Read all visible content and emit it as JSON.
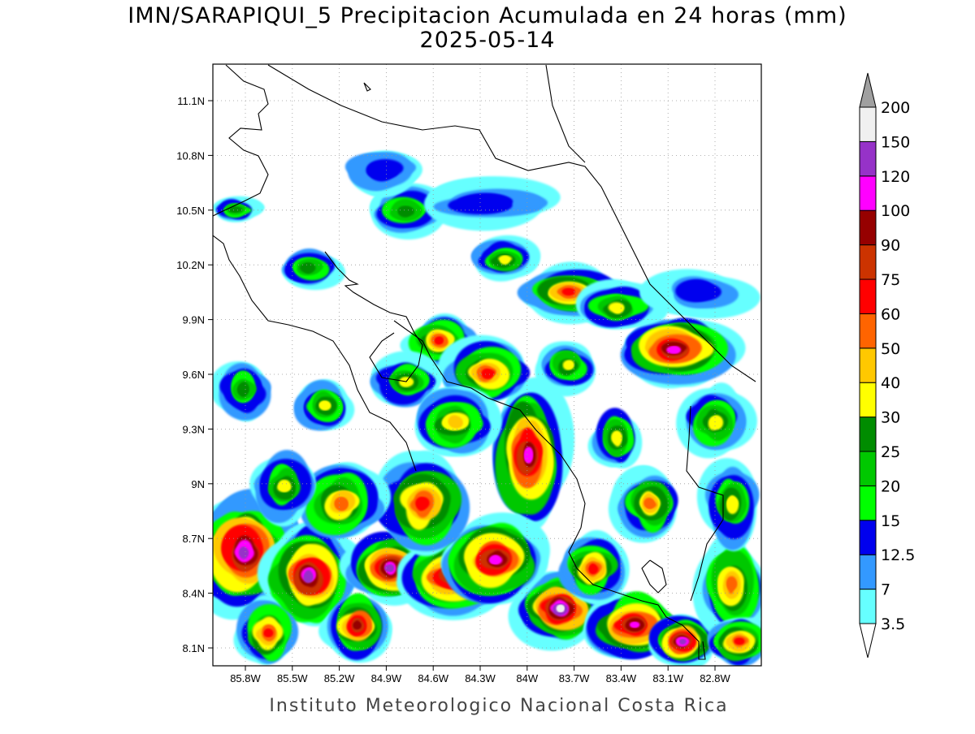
{
  "header": {
    "title": "IMN/SARAPIQUI_5 Precipitacion Acumulada en 24 horas (mm)",
    "date": "2025-05-14"
  },
  "map": {
    "lon_ticks": [
      "85.8W",
      "85.5W",
      "85.2W",
      "84.9W",
      "84.6W",
      "84.3W",
      "84W",
      "83.7W",
      "83.4W",
      "83.1W",
      "82.8W"
    ],
    "lat_ticks": [
      "11.1N",
      "10.8N",
      "10.5N",
      "10.2N",
      "9.9N",
      "9.6N",
      "9.3N",
      "9N",
      "8.7N",
      "8.4N",
      "8.1N"
    ]
  },
  "colorbar": {
    "levels": [
      3.5,
      7,
      12.5,
      15,
      20,
      25,
      30,
      40,
      50,
      60,
      75,
      90,
      100,
      120,
      150,
      200
    ],
    "colors": [
      "#66ffff",
      "#3399ff",
      "#0000ee",
      "#00ff00",
      "#00c800",
      "#008c00",
      "#ffff00",
      "#ffc800",
      "#ff6400",
      "#ff0000",
      "#cc3300",
      "#960000",
      "#ff00ff",
      "#9632c8",
      "#f0f0f0"
    ],
    "under_color": "#ffffff",
    "over_color": "#a0a0a0"
  },
  "footer": "Instituto Meteorologico Nacional Costa Rica"
}
